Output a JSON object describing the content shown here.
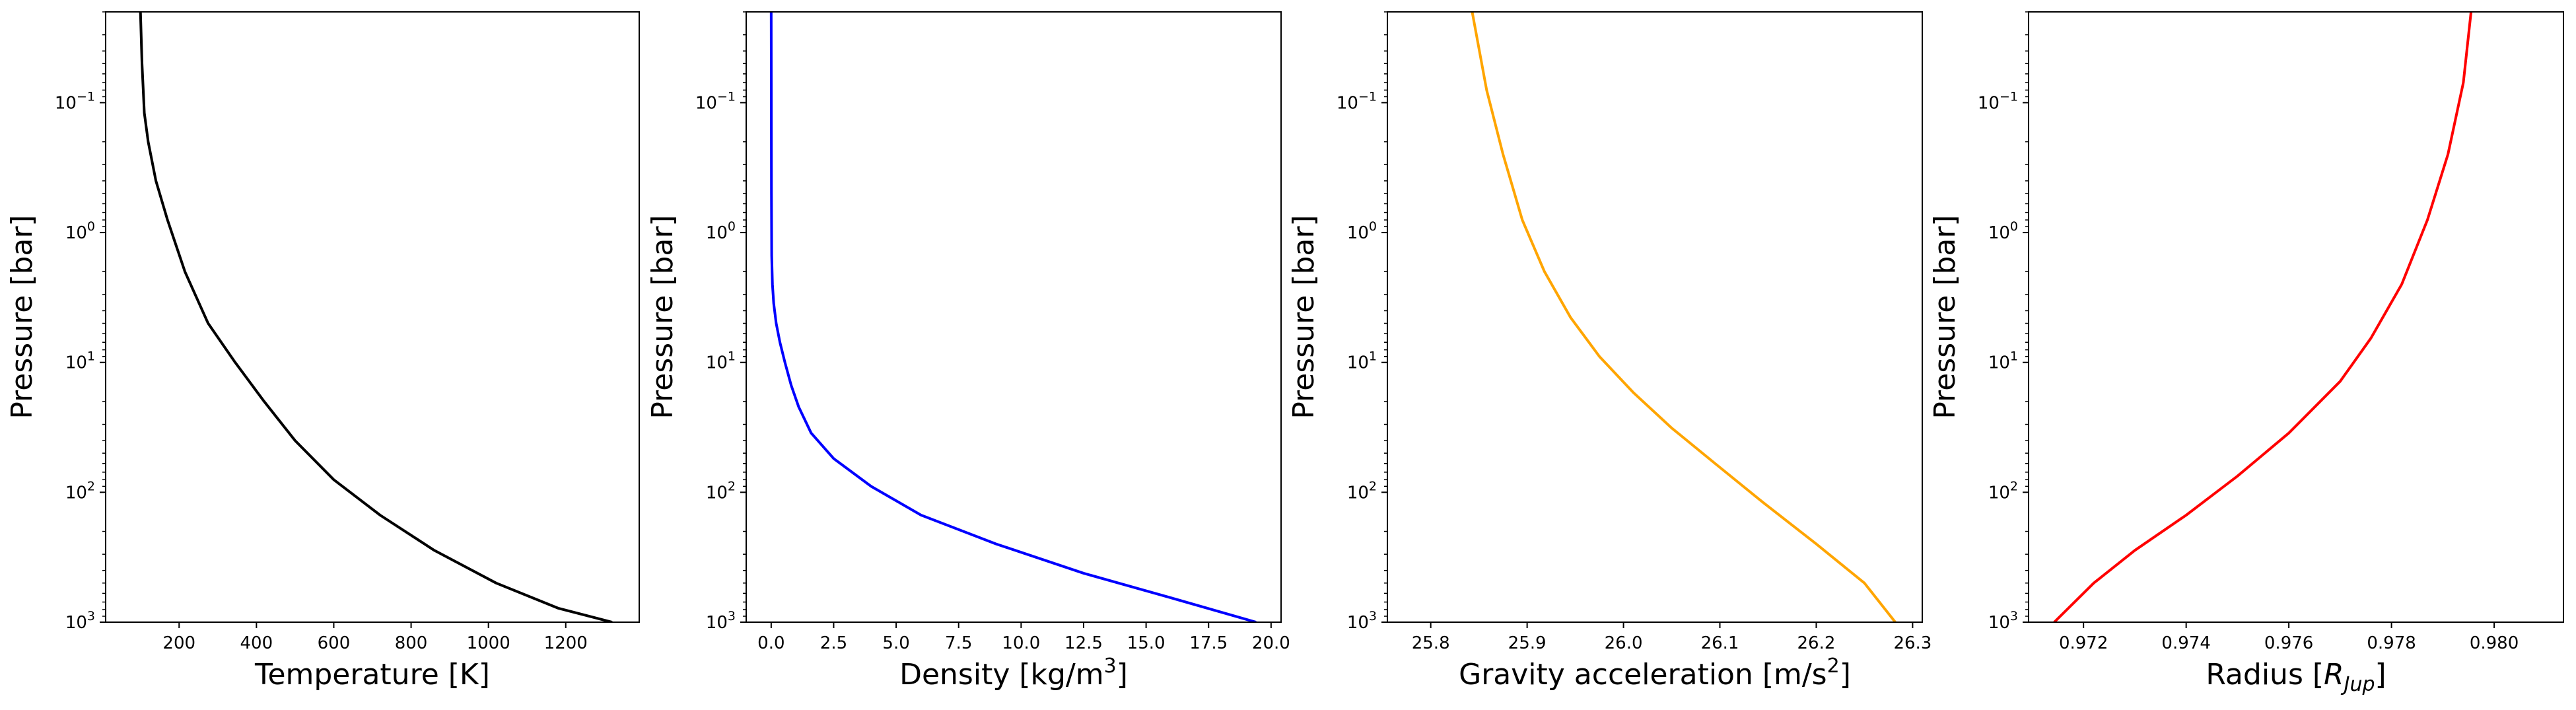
{
  "chart_data": [
    {
      "type": "line",
      "xlabel": "Temperature [K]",
      "ylabel": "Pressure [bar]",
      "yscale": "log",
      "yinverted": true,
      "xlim": [
        10,
        1390
      ],
      "ylim": [
        1000,
        0.02
      ],
      "xticks": [
        200,
        400,
        600,
        800,
        1000,
        1200
      ],
      "xtick_labels": [
        "200",
        "400",
        "600",
        "800",
        "1000",
        "1200"
      ],
      "yticks": [
        0.1,
        1,
        10,
        100,
        1000
      ],
      "ytick_labels": [
        "10⁻¹",
        "10⁰",
        "10¹",
        "10²",
        "10³"
      ],
      "grid": false,
      "series": [
        {
          "color": "#000000",
          "x": [
            100,
            104,
            110,
            120,
            140,
            170,
            215,
            275,
            345,
            420,
            500,
            600,
            720,
            860,
            1020,
            1180,
            1320
          ],
          "y": [
            0.02,
            0.05,
            0.12,
            0.2,
            0.4,
            0.8,
            2,
            5,
            10,
            20,
            40,
            80,
            150,
            280,
            500,
            780,
            1000
          ]
        }
      ]
    },
    {
      "type": "line",
      "xlabel": "Density [kg/m³]",
      "ylabel": "Pressure [bar]",
      "yscale": "log",
      "yinverted": true,
      "xlim": [
        -1.0,
        20.4
      ],
      "ylim": [
        1000,
        0.02
      ],
      "xticks": [
        0.0,
        2.5,
        5.0,
        7.5,
        10.0,
        12.5,
        15.0,
        17.5,
        20.0
      ],
      "xtick_labels": [
        "0.0",
        "2.5",
        "5.0",
        "7.5",
        "10.0",
        "12.5",
        "15.0",
        "17.5",
        "20.0"
      ],
      "yticks": [
        0.1,
        1,
        10,
        100,
        1000
      ],
      "ytick_labels": [
        "10⁻¹",
        "10⁰",
        "10¹",
        "10²",
        "10³"
      ],
      "grid": false,
      "series": [
        {
          "color": "#0000ff",
          "x": [
            0.0,
            0.01,
            0.02,
            0.05,
            0.1,
            0.2,
            0.35,
            0.55,
            0.8,
            1.1,
            1.6,
            2.5,
            4.0,
            6.0,
            9.0,
            12.5,
            16.0,
            19.4
          ],
          "y": [
            0.02,
            0.5,
            1.5,
            2.5,
            3.5,
            5,
            7,
            10,
            15,
            22,
            35,
            55,
            90,
            150,
            250,
            420,
            650,
            1000
          ]
        }
      ]
    },
    {
      "type": "line",
      "xlabel": "Gravity acceleration [m/s²]",
      "ylabel": "Pressure [bar]",
      "yscale": "log",
      "yinverted": true,
      "xlim": [
        25.755,
        26.31
      ],
      "ylim": [
        1000,
        0.02
      ],
      "xticks": [
        25.8,
        25.9,
        26.0,
        26.1,
        26.2,
        26.3
      ],
      "xtick_labels": [
        "25.8",
        "25.9",
        "26.0",
        "26.1",
        "26.2",
        "26.3"
      ],
      "yticks": [
        0.1,
        1,
        10,
        100,
        1000
      ],
      "ytick_labels": [
        "10⁻¹",
        "10⁰",
        "10¹",
        "10²",
        "10³"
      ],
      "grid": false,
      "series": [
        {
          "color": "#ffa500",
          "x": [
            25.843,
            25.858,
            25.875,
            25.895,
            25.918,
            25.945,
            25.975,
            26.01,
            26.05,
            26.095,
            26.145,
            26.2,
            26.25,
            26.282
          ],
          "y": [
            0.02,
            0.08,
            0.25,
            0.8,
            2,
            4.5,
            9,
            17,
            32,
            60,
            120,
            250,
            500,
            1000
          ]
        }
      ]
    },
    {
      "type": "line",
      "xlabel": "Radius [R_Jup]",
      "ylabel": "Pressure [bar]",
      "yscale": "log",
      "yinverted": true,
      "xlim": [
        0.97093,
        0.98135
      ],
      "ylim": [
        1000,
        0.02
      ],
      "xticks": [
        0.972,
        0.974,
        0.976,
        0.978,
        0.98
      ],
      "xtick_labels": [
        "0.972",
        "0.974",
        "0.976",
        "0.978",
        "0.980"
      ],
      "yticks": [
        0.1,
        1,
        10,
        100,
        1000
      ],
      "ytick_labels": [
        "10⁻¹",
        "10⁰",
        "10¹",
        "10²",
        "10³"
      ],
      "grid": false,
      "series": [
        {
          "color": "#ff0000",
          "x": [
            0.97143,
            0.9722,
            0.973,
            0.974,
            0.975,
            0.976,
            0.977,
            0.9776,
            0.9782,
            0.9787,
            0.9791,
            0.9794,
            0.97955
          ],
          "y": [
            1000,
            500,
            280,
            150,
            75,
            35,
            14,
            6.5,
            2.5,
            0.8,
            0.25,
            0.07,
            0.02
          ]
        }
      ]
    }
  ]
}
